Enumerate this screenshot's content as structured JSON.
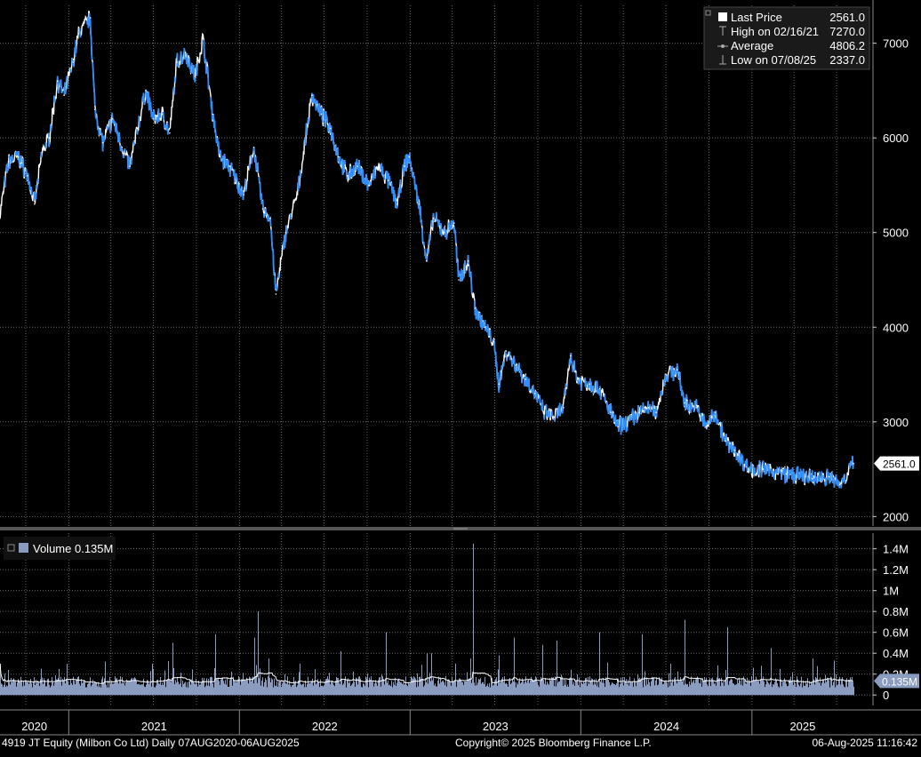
{
  "legend": {
    "rows": [
      {
        "icon": "last-price-square-icon",
        "label": "Last Price",
        "value": "2561.0"
      },
      {
        "icon": "high-marker-icon",
        "label": "High on 02/16/21",
        "value": "7270.0"
      },
      {
        "icon": "average-marker-icon",
        "label": "Average",
        "value": "4806.2"
      },
      {
        "icon": "low-marker-icon",
        "label": "Low on 07/08/25",
        "value": "2337.0"
      }
    ]
  },
  "volume_legend": {
    "label": "Volume 0.135M"
  },
  "price_tag": "2561.0",
  "volume_tag": "0.135M",
  "footer": {
    "left": "4919 JT Equity (Milbon Co Ltd)  Daily 07AUG2020-06AUG2025",
    "center": "Copyright© 2025 Bloomberg Finance L.P.",
    "right": "06-Aug-2025 11:16:42"
  },
  "colors": {
    "background": "#000000",
    "price_line": "#ffffff",
    "price_down": "#2f8fff",
    "volume_bars": "#8a9cc0",
    "volume_avg": "#ffffff",
    "grid": "#666666",
    "legend_bg": "#1a1a1a"
  },
  "chart_data": [
    {
      "type": "line",
      "name": "price",
      "x_start": "2020-08-07",
      "x_end": "2025-08-06",
      "ylim": [
        1900,
        7400
      ],
      "y_ticks": [
        2000,
        3000,
        4000,
        5000,
        6000,
        7000
      ],
      "y_tick_labels": [
        "2000",
        "3000",
        "4000",
        "5000",
        "6000",
        "7000"
      ],
      "x_tick_labels": [
        "2020",
        "2021",
        "2022",
        "2023",
        "2024",
        "2025"
      ],
      "grid": true,
      "legend_position": "top-right",
      "points": [
        [
          "2020-08-07",
          5200
        ],
        [
          "2020-08-25",
          5750
        ],
        [
          "2020-09-15",
          5800
        ],
        [
          "2020-10-05",
          5600
        ],
        [
          "2020-10-20",
          5300
        ],
        [
          "2020-11-05",
          5850
        ],
        [
          "2020-11-20",
          6000
        ],
        [
          "2020-12-08",
          6600
        ],
        [
          "2020-12-22",
          6450
        ],
        [
          "2021-01-10",
          6800
        ],
        [
          "2021-01-22",
          7100
        ],
        [
          "2021-02-16",
          7270
        ],
        [
          "2021-02-26",
          6300
        ],
        [
          "2021-03-15",
          5950
        ],
        [
          "2021-04-05",
          6200
        ],
        [
          "2021-04-25",
          5900
        ],
        [
          "2021-05-12",
          5700
        ],
        [
          "2021-05-28",
          6100
        ],
        [
          "2021-06-15",
          6500
        ],
        [
          "2021-07-01",
          6200
        ],
        [
          "2021-07-20",
          6250
        ],
        [
          "2021-08-05",
          6050
        ],
        [
          "2021-08-20",
          6800
        ],
        [
          "2021-09-08",
          6900
        ],
        [
          "2021-09-28",
          6650
        ],
        [
          "2021-10-15",
          7050
        ],
        [
          "2021-11-05",
          6250
        ],
        [
          "2021-11-20",
          5800
        ],
        [
          "2021-12-10",
          5700
        ],
        [
          "2022-01-10",
          5400
        ],
        [
          "2022-02-01",
          5900
        ],
        [
          "2022-02-20",
          5250
        ],
        [
          "2022-03-08",
          5150
        ],
        [
          "2022-03-20",
          4350
        ],
        [
          "2022-04-10",
          5000
        ],
        [
          "2022-05-05",
          5400
        ],
        [
          "2022-06-05",
          6450
        ],
        [
          "2022-06-25",
          6250
        ],
        [
          "2022-07-15",
          6100
        ],
        [
          "2022-08-01",
          5800
        ],
        [
          "2022-08-20",
          5600
        ],
        [
          "2022-09-10",
          5700
        ],
        [
          "2022-10-05",
          5500
        ],
        [
          "2022-10-25",
          5700
        ],
        [
          "2022-11-15",
          5550
        ],
        [
          "2022-12-05",
          5300
        ],
        [
          "2022-12-20",
          5700
        ],
        [
          "2022-12-30",
          5800
        ],
        [
          "2023-01-20",
          5300
        ],
        [
          "2023-02-05",
          4700
        ],
        [
          "2023-02-20",
          5150
        ],
        [
          "2023-03-15",
          5000
        ],
        [
          "2023-04-05",
          5100
        ],
        [
          "2023-04-15",
          4500
        ],
        [
          "2023-05-05",
          4700
        ],
        [
          "2023-05-20",
          4200
        ],
        [
          "2023-06-10",
          4000
        ],
        [
          "2023-06-28",
          3850
        ],
        [
          "2023-07-10",
          3400
        ],
        [
          "2023-07-25",
          3750
        ],
        [
          "2023-08-15",
          3600
        ],
        [
          "2023-09-05",
          3450
        ],
        [
          "2023-09-25",
          3300
        ],
        [
          "2023-10-15",
          3100
        ],
        [
          "2023-11-05",
          3050
        ],
        [
          "2023-11-25",
          3150
        ],
        [
          "2023-12-10",
          3700
        ],
        [
          "2023-12-25",
          3450
        ],
        [
          "2024-01-20",
          3400
        ],
        [
          "2024-02-10",
          3350
        ],
        [
          "2024-03-05",
          3100
        ],
        [
          "2024-03-20",
          2950
        ],
        [
          "2024-04-10",
          3000
        ],
        [
          "2024-05-05",
          3100
        ],
        [
          "2024-05-25",
          3150
        ],
        [
          "2024-06-10",
          3100
        ],
        [
          "2024-07-01",
          3500
        ],
        [
          "2024-07-25",
          3550
        ],
        [
          "2024-08-10",
          3200
        ],
        [
          "2024-09-05",
          3150
        ],
        [
          "2024-09-25",
          2950
        ],
        [
          "2024-10-15",
          3100
        ],
        [
          "2024-11-05",
          2800
        ],
        [
          "2024-11-25",
          2700
        ],
        [
          "2024-12-25",
          2500
        ],
        [
          "2025-01-25",
          2500
        ],
        [
          "2025-03-15",
          2450
        ],
        [
          "2025-05-10",
          2400
        ],
        [
          "2025-06-15",
          2420
        ],
        [
          "2025-07-08",
          2337
        ],
        [
          "2025-08-06",
          2561
        ]
      ]
    },
    {
      "type": "bar",
      "name": "volume",
      "ylim": [
        -0.1,
        1.55
      ],
      "y_ticks": [
        0,
        0.2,
        0.4,
        0.6,
        0.8,
        1.0,
        1.2,
        1.4
      ],
      "y_tick_labels": [
        "0",
        "0.2M",
        "0.4M",
        "0.6M",
        "0.8M",
        "1M",
        "1.2M",
        "1.4M"
      ],
      "baseline": 0.12,
      "spikes": [
        [
          "2020-08-07",
          0.3
        ],
        [
          "2020-12-10",
          0.25
        ],
        [
          "2021-03-20",
          0.32
        ],
        [
          "2021-08-10",
          0.5
        ],
        [
          "2021-11-10",
          0.58
        ],
        [
          "2022-02-01",
          0.55
        ],
        [
          "2022-02-10",
          0.8
        ],
        [
          "2022-03-05",
          0.35
        ],
        [
          "2022-05-10",
          0.3
        ],
        [
          "2022-08-05",
          0.42
        ],
        [
          "2022-11-10",
          0.6
        ],
        [
          "2023-02-05",
          0.4
        ],
        [
          "2023-02-15",
          0.4
        ],
        [
          "2023-05-10",
          0.35
        ],
        [
          "2023-05-15",
          1.45
        ],
        [
          "2023-07-10",
          0.38
        ],
        [
          "2023-08-10",
          0.55
        ],
        [
          "2023-10-10",
          0.48
        ],
        [
          "2023-11-10",
          0.52
        ],
        [
          "2024-02-10",
          0.6
        ],
        [
          "2024-05-10",
          0.58
        ],
        [
          "2024-07-10",
          0.3
        ],
        [
          "2024-08-10",
          0.72
        ],
        [
          "2024-11-10",
          0.65
        ],
        [
          "2025-01-20",
          0.28
        ],
        [
          "2025-02-10",
          0.45
        ],
        [
          "2025-05-10",
          0.35
        ],
        [
          "2025-06-25",
          0.33
        ]
      ]
    }
  ]
}
